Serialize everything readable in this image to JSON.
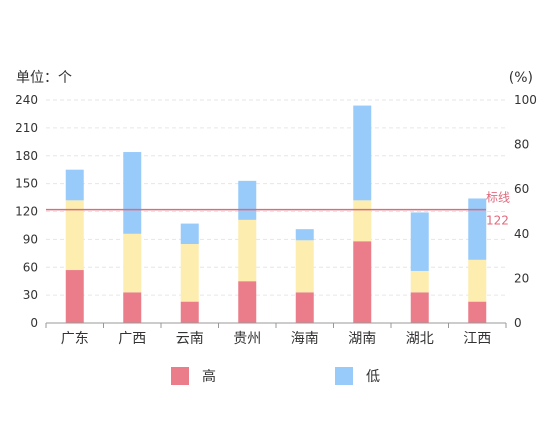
{
  "chart_data": {
    "type": "bar",
    "stacked": true,
    "categories": [
      "广东",
      "广西",
      "云南",
      "贵州",
      "海南",
      "湖南",
      "湖北",
      "江西"
    ],
    "series": [
      {
        "name": "高",
        "values": [
          57,
          33,
          23,
          45,
          33,
          88,
          33,
          23
        ],
        "color": "#ea7d89"
      },
      {
        "name": "",
        "values": [
          75,
          63,
          62,
          66,
          56,
          44,
          23,
          45
        ],
        "color": "#fdeeb0"
      },
      {
        "name": "低",
        "values": [
          33,
          88,
          22,
          42,
          12,
          102,
          63,
          66
        ],
        "color": "#98cbfa"
      }
    ],
    "left_axis": {
      "label": "单位：个",
      "min": 0,
      "max": 240,
      "ticks": [
        "0",
        "30",
        "60",
        "90",
        "120",
        "150",
        "180",
        "210",
        "240"
      ]
    },
    "right_axis": {
      "label": "(%)",
      "min": 0,
      "max": 100,
      "ticks": [
        "0",
        "20",
        "40",
        "60",
        "80",
        "100"
      ]
    },
    "reference_line": {
      "value": 122,
      "label": "标线",
      "value_label": "122",
      "color": "#e06a7b"
    },
    "grid": true,
    "legend_position": "bottom"
  }
}
